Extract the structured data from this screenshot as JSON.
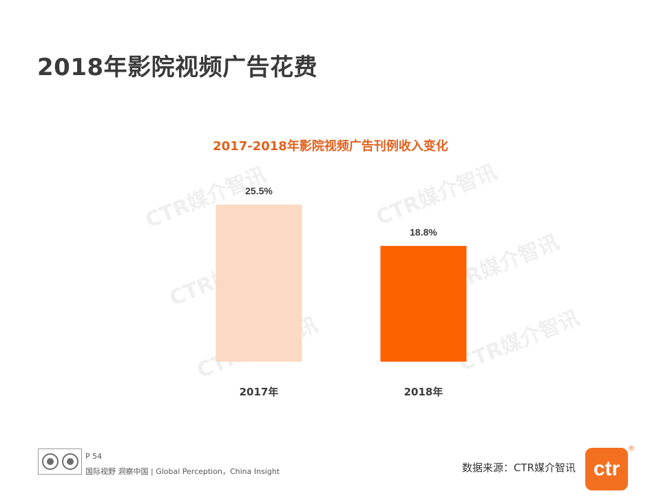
{
  "page": {
    "title": "2018年影院视频广告花费",
    "watermark_text": "CTR媒介智讯"
  },
  "chart_data": {
    "type": "bar",
    "title": "2017-2018年影院视频广告刊例收入变化",
    "categories": [
      "2017年",
      "2018年"
    ],
    "values": [
      25.5,
      18.8
    ],
    "value_labels": [
      "25.5%",
      "18.8%"
    ],
    "bar_colors": [
      "#fbd9c2",
      "#fe6200"
    ],
    "xlabel": "",
    "ylabel": "",
    "ylim": [
      0,
      25.5
    ],
    "grid": false,
    "legend": "none"
  },
  "footer": {
    "page_number": "P 54",
    "slogan": "国际视野 洞察中国 | Global Perception，China Insight",
    "data_source": "数据来源：CTR媒介智讯",
    "logo_text": "ctr",
    "logo_reg": "®"
  },
  "colors": {
    "title_text": "#3a3a3a",
    "chart_title": "#e2611d",
    "brand_orange": "#f37021"
  }
}
